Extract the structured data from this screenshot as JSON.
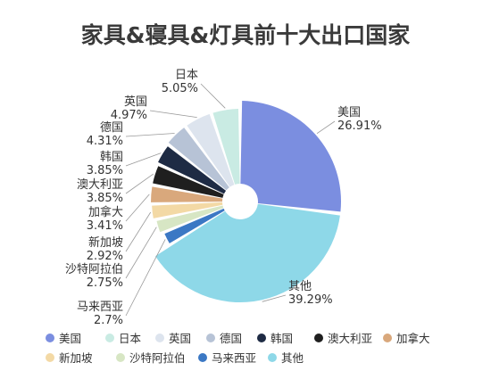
{
  "chart_data": {
    "type": "pie",
    "title": "家具&寝具&灯具前十大出口国家",
    "slices": [
      {
        "name": "美国",
        "value": 26.91,
        "label": "26.91%",
        "color": "#7b8ee0"
      },
      {
        "name": "其他",
        "value": 39.29,
        "label": "39.29%",
        "color": "#8ed8e8"
      },
      {
        "name": "马来西亚",
        "value": 2.7,
        "label": "2.7%",
        "color": "#3b78c4"
      },
      {
        "name": "沙特阿拉伯",
        "value": 2.75,
        "label": "2.75%",
        "color": "#d7e6c4"
      },
      {
        "name": "新加坡",
        "value": 2.92,
        "label": "2.92%",
        "color": "#f3d9a5"
      },
      {
        "name": "加拿大",
        "value": 3.41,
        "label": "3.41%",
        "color": "#d9a87c"
      },
      {
        "name": "澳大利亚",
        "value": 3.85,
        "label": "3.85%",
        "color": "#1f1f1f"
      },
      {
        "name": "韩国",
        "value": 3.85,
        "label": "3.85%",
        "color": "#1e2b44"
      },
      {
        "name": "德国",
        "value": 4.31,
        "label": "4.31%",
        "color": "#b7c3d6"
      },
      {
        "name": "英国",
        "value": 4.97,
        "label": "4.97%",
        "color": "#dde4ee"
      },
      {
        "name": "日本",
        "value": 5.05,
        "label": "5.05%",
        "color": "#c9ebe3"
      }
    ],
    "legend": [
      {
        "name": "美国",
        "color": "#7b8ee0"
      },
      {
        "name": "日本",
        "color": "#c9ebe3"
      },
      {
        "name": "英国",
        "color": "#dde4ee"
      },
      {
        "name": "德国",
        "color": "#b7c3d6"
      },
      {
        "name": "韩国",
        "color": "#1e2b44"
      },
      {
        "name": "澳大利亚",
        "color": "#1f1f1f"
      },
      {
        "name": "加拿大",
        "color": "#d9a87c"
      },
      {
        "name": "新加坡",
        "color": "#f3d9a5"
      },
      {
        "name": "沙特阿拉伯",
        "color": "#d7e6c4"
      },
      {
        "name": "马来西亚",
        "color": "#3b78c4"
      },
      {
        "name": "其他",
        "color": "#8ed8e8"
      }
    ],
    "legend_position": "bottom"
  }
}
